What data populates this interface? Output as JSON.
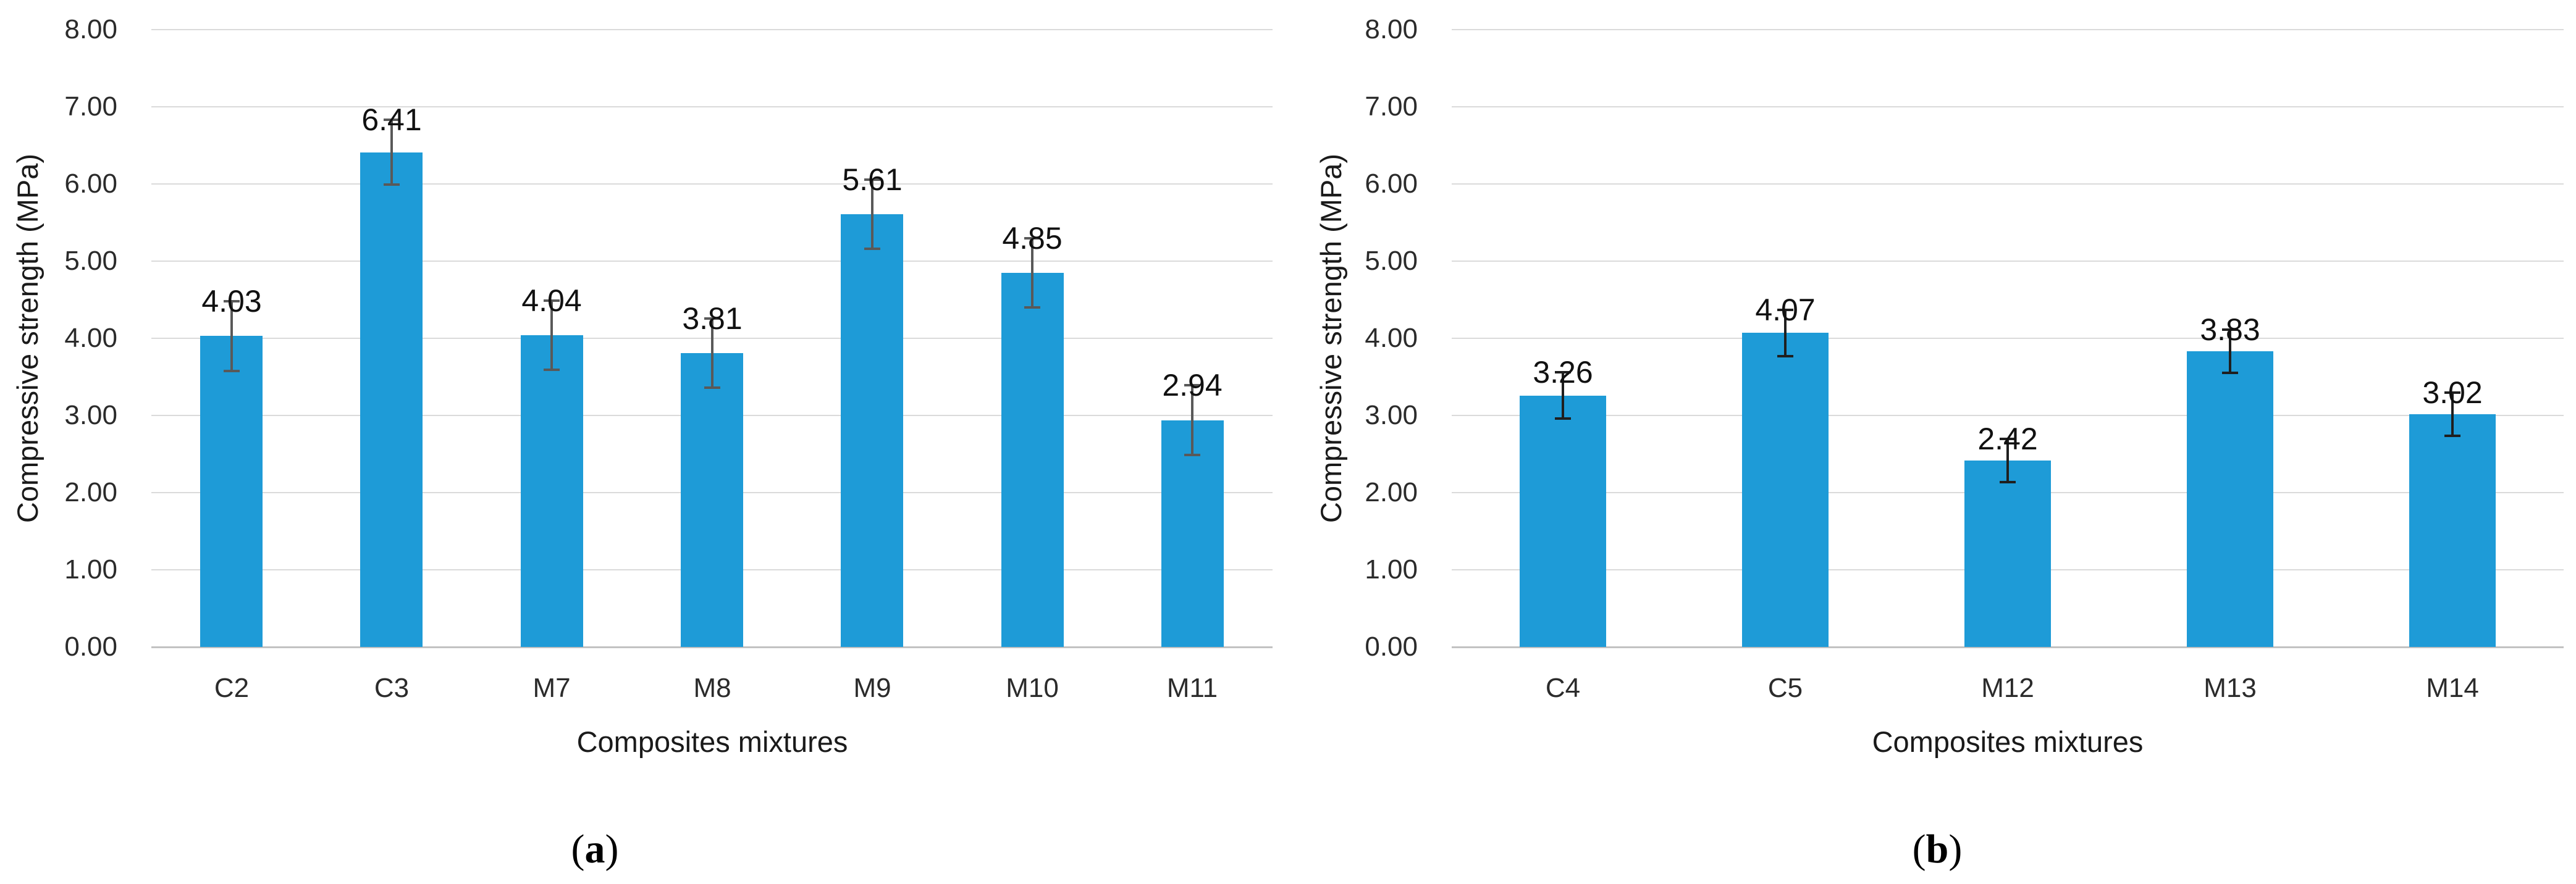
{
  "figure": {
    "background": "#ffffff",
    "bar_color": "#1E9BD7",
    "gridline_color": "#dadada",
    "axis_line_color": "#c2c2c2"
  },
  "chart_data": [
    {
      "type": "bar",
      "panel_label": "(a)",
      "panel_label_open": "(",
      "panel_label_letter": "a",
      "panel_label_close": ")",
      "title": "",
      "xlabel": "Composites mixtures",
      "ylabel": "Compressive strength (MPa)",
      "categories": [
        "C2",
        "C3",
        "M7",
        "M8",
        "M9",
        "M10",
        "M11"
      ],
      "values": [
        4.03,
        6.41,
        4.04,
        3.81,
        5.61,
        4.85,
        2.94
      ],
      "data_labels": [
        "4.03",
        "6.41",
        "4.04",
        "3.81",
        "5.61",
        "4.85",
        "2.94"
      ],
      "error_bars": [
        0.45,
        0.42,
        0.45,
        0.45,
        0.45,
        0.45,
        0.45
      ],
      "ylim": [
        0,
        8
      ],
      "y_tick_step": 1,
      "y_tick_labels": [
        "0.00",
        "1.00",
        "2.00",
        "3.00",
        "4.00",
        "5.00",
        "6.00",
        "7.00",
        "8.00"
      ],
      "grid": true,
      "legend": "none",
      "bar_color": "#1E9BD7",
      "error_bar_color": "#595959"
    },
    {
      "type": "bar",
      "panel_label": "(b)",
      "panel_label_open": "(",
      "panel_label_letter": "b",
      "panel_label_close": ")",
      "title": "",
      "xlabel": "Composites mixtures",
      "ylabel": "Compressive strength (MPa)",
      "categories": [
        "C4",
        "C5",
        "M12",
        "M13",
        "M14"
      ],
      "values": [
        3.26,
        4.07,
        2.42,
        3.83,
        3.02
      ],
      "data_labels": [
        "3.26",
        "4.07",
        "2.42",
        "3.83",
        "3.02"
      ],
      "error_bars": [
        0.3,
        0.3,
        0.28,
        0.28,
        0.28
      ],
      "ylim": [
        0,
        8
      ],
      "y_tick_step": 1,
      "y_tick_labels": [
        "0.00",
        "1.00",
        "2.00",
        "3.00",
        "4.00",
        "5.00",
        "6.00",
        "7.00",
        "8.00"
      ],
      "grid": true,
      "legend": "none",
      "bar_color": "#1E9BD7",
      "error_bar_color": "#1f1f1f"
    }
  ]
}
